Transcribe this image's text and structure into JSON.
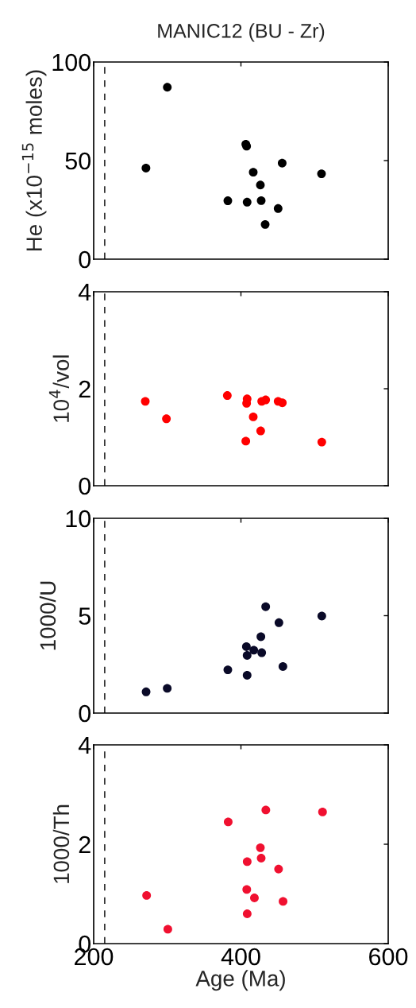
{
  "chart_data": [
    {
      "type": "scatter",
      "title": "MANIC12 (BU - Zr)",
      "ylabel": "He (x10$^{−15}$ moles)",
      "marker": "circle",
      "grid": false,
      "legend": false,
      "tick_labels": "y",
      "xlim": [
        200,
        600
      ],
      "xticks": [
        200,
        400,
        600
      ],
      "ylim": [
        0,
        100
      ],
      "yticks": [
        0,
        50,
        100
      ],
      "ref_lines": [
        {
          "axis": "x",
          "value": 215,
          "line_style": "dashed",
          "color": "#000000"
        }
      ],
      "series": [
        {
          "color": "#000000",
          "x": [
            271,
            300,
            406.6,
            407.7,
            456,
            416.7,
            509.4,
            426.4,
            382.2,
            408.4,
            427.5,
            450.5,
            432.9
          ],
          "values": [
            46.2,
            87.2,
            58.3,
            57.3,
            48.7,
            44.1,
            43.3,
            37.6,
            29.6,
            28.9,
            29.7,
            25.7,
            17.6
          ]
        }
      ]
    },
    {
      "type": "scatter",
      "ylabel": "10$^{4}$/vol",
      "marker": "circle",
      "grid": false,
      "legend": false,
      "tick_labels": "y",
      "xlim": [
        200,
        600
      ],
      "xticks": [
        200,
        400,
        600
      ],
      "ylim": [
        0,
        4
      ],
      "yticks": [
        0,
        2,
        4
      ],
      "ref_lines": [
        {
          "axis": "x",
          "value": 215,
          "line_style": "dashed",
          "color": "#000000"
        }
      ],
      "series": [
        {
          "color": "#ff0000",
          "x": [
            270.1,
            298.8,
            381.5,
            408.4,
            407.7,
            428.2,
            433.6,
            450.5,
            456.2,
            416.7,
            426.8,
            406.6,
            509.8
          ],
          "values": [
            1.74,
            1.38,
            1.86,
            1.79,
            1.7,
            1.74,
            1.77,
            1.74,
            1.71,
            1.42,
            1.13,
            0.92,
            0.9
          ]
        }
      ]
    },
    {
      "type": "scatter",
      "ylabel": "1000/U",
      "marker": "circle",
      "grid": false,
      "legend": false,
      "tick_labels": "y",
      "xlim": [
        200,
        600
      ],
      "xticks": [
        200,
        400,
        600
      ],
      "ylim": [
        0,
        10
      ],
      "yticks": [
        0,
        5,
        10
      ],
      "ref_lines": [
        {
          "axis": "x",
          "value": 215,
          "line_style": "dashed",
          "color": "#000000"
        }
      ],
      "series": [
        {
          "color": "#0a0a28",
          "x": [
            271.2,
            299.9,
            382.2,
            408.4,
            407.4,
            417.4,
            408.4,
            428.2,
            427.1,
            433.6,
            451.6,
            457.0,
            509.8
          ],
          "values": [
            1.09,
            1.27,
            2.22,
            1.94,
            3.41,
            3.23,
            2.96,
            3.1,
            3.92,
            5.46,
            4.64,
            2.39,
            4.98
          ]
        }
      ]
    },
    {
      "type": "scatter",
      "xlabel": "Age (Ma)",
      "ylabel": "1000/Th",
      "marker": "circle",
      "grid": false,
      "legend": false,
      "xlim": [
        200,
        600
      ],
      "xticks": [
        200,
        400,
        600
      ],
      "ylim": [
        0,
        4
      ],
      "yticks": [
        0,
        2,
        4
      ],
      "ref_lines": [
        {
          "axis": "x",
          "value": 215,
          "line_style": "dashed",
          "color": "#000000"
        }
      ],
      "series": [
        {
          "color": "#f01030",
          "x": [
            271.9,
            300.7,
            382.7,
            433.8,
            510.8,
            426.4,
            427.5,
            408.5,
            451.1,
            407.9,
            418.3,
            457.2,
            408.5
          ],
          "values": [
            0.97,
            0.29,
            2.45,
            2.69,
            2.65,
            1.93,
            1.72,
            1.65,
            1.5,
            1.09,
            0.92,
            0.85,
            0.6
          ]
        }
      ]
    }
  ]
}
